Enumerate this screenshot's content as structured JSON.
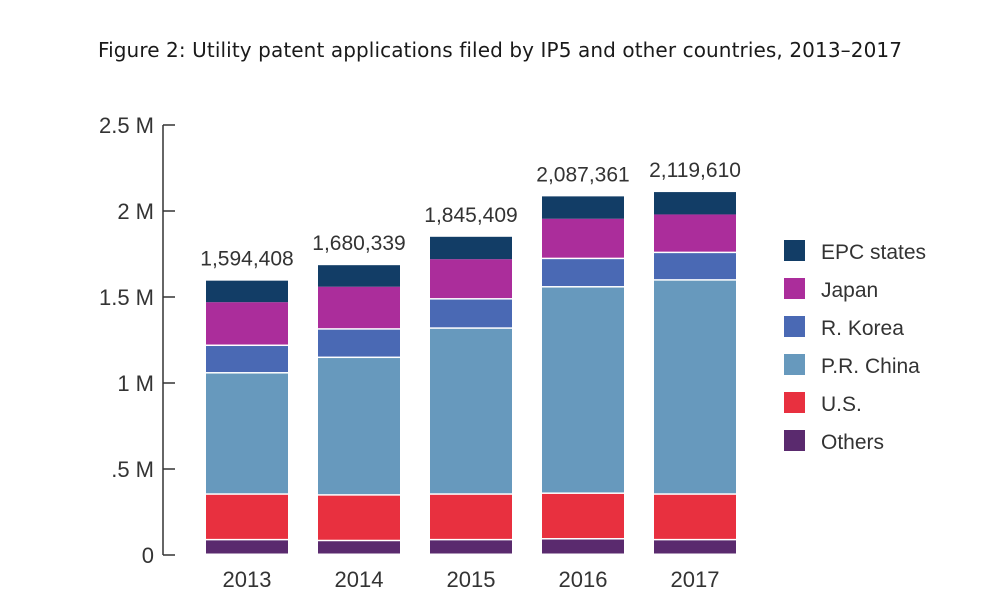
{
  "chart_data": {
    "type": "bar",
    "stacked": true,
    "title": "Figure 2: Utility patent applications filed by IP5 and other countries, 2013–2017",
    "xlabel": "",
    "ylabel": "",
    "ylim": [
      0,
      2500000
    ],
    "y_ticks": [
      {
        "value": 0,
        "label": "0"
      },
      {
        "value": 500000,
        "label": ".5 M"
      },
      {
        "value": 1000000,
        "label": "1 M"
      },
      {
        "value": 1500000,
        "label": "1.5 M"
      },
      {
        "value": 2000000,
        "label": "2 M"
      },
      {
        "value": 2500000,
        "label": "2.5 M"
      }
    ],
    "categories": [
      "2013",
      "2014",
      "2015",
      "2016",
      "2017"
    ],
    "totals": [
      "1,594,408",
      "1,680,339",
      "1,845,409",
      "2,087,361",
      "2,119,610"
    ],
    "legend_position": "right",
    "grid": false,
    "series": [
      {
        "name": "Others",
        "color": "#5a2a6e",
        "values": [
          85000,
          80000,
          85000,
          90000,
          85000
        ]
      },
      {
        "name": "U.S.",
        "color": "#e8303f",
        "values": [
          265000,
          265000,
          265000,
          265000,
          265000
        ]
      },
      {
        "name": "P.R. China",
        "color": "#6799bd",
        "values": [
          705000,
          800000,
          965000,
          1200000,
          1245000
        ]
      },
      {
        "name": "R. Korea",
        "color": "#4a69b4",
        "values": [
          160000,
          165000,
          170000,
          165000,
          160000
        ]
      },
      {
        "name": "Japan",
        "color": "#ab2d9b",
        "values": [
          255000,
          250000,
          235000,
          235000,
          225000
        ]
      },
      {
        "name": "EPC states",
        "color": "#123d66",
        "values": [
          125000,
          125000,
          130000,
          130000,
          130000
        ]
      }
    ]
  }
}
